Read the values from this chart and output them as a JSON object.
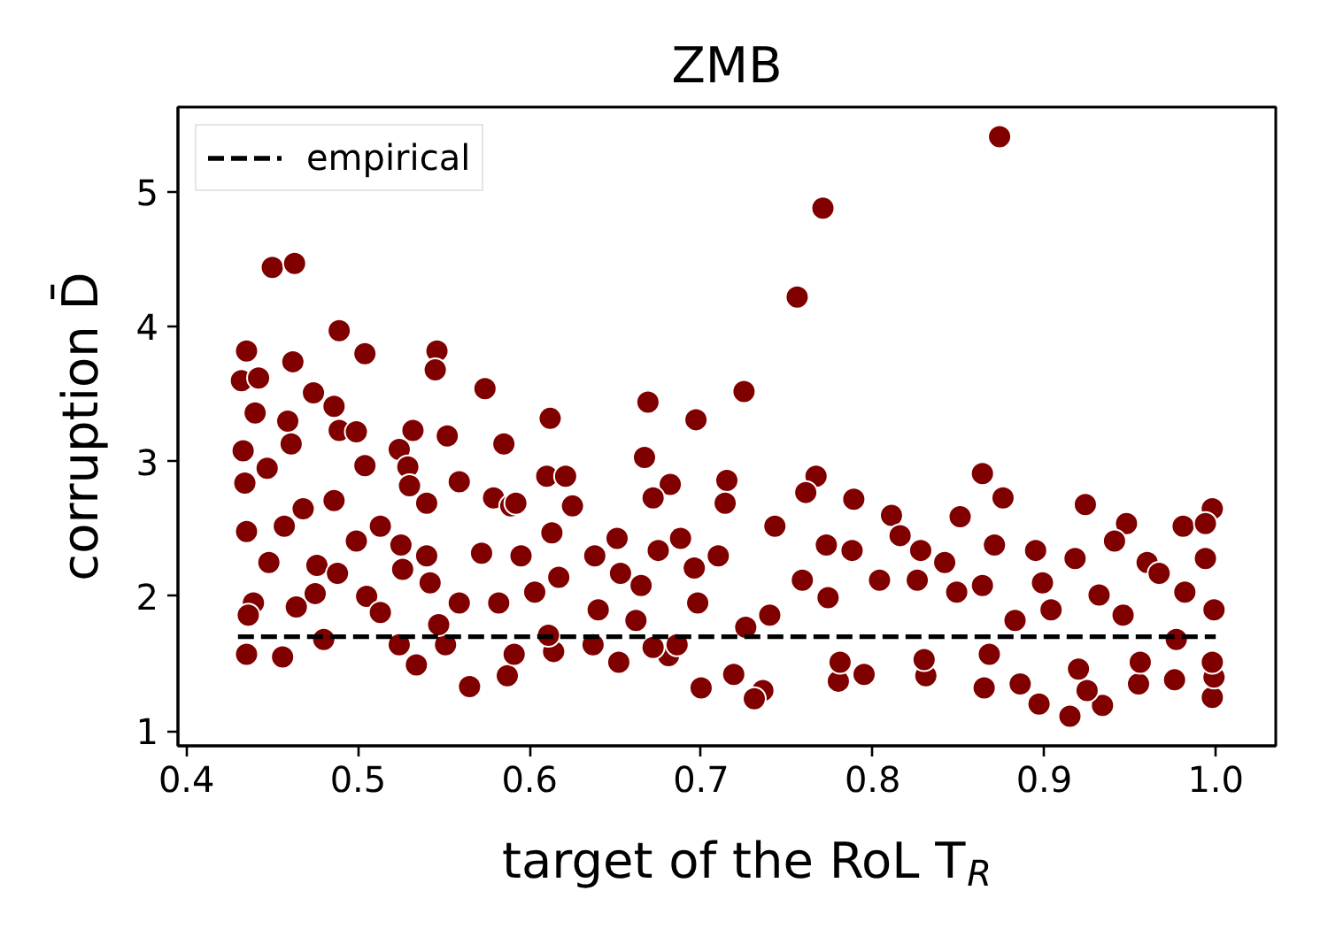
{
  "chart_data": {
    "type": "scatter",
    "title": "ZMB",
    "xlabel": "target of the RoL T$_{R}$",
    "ylabel": "corruption D̄",
    "xlim": [
      0.395,
      1.035
    ],
    "ylim": [
      0.89,
      5.63
    ],
    "xticks": [
      0.4,
      0.5,
      0.6,
      0.7,
      0.8,
      0.9,
      {
        "value": 1.0,
        "label": "1.0"
      }
    ],
    "yticks": [
      1,
      2,
      3,
      4,
      5
    ],
    "legend": "top left",
    "series": [
      {
        "color": "#800000",
        "marker": "circle",
        "x": [
          0.874,
          0.771,
          0.756,
          0.725,
          0.697,
          0.864,
          0.876,
          0.767,
          0.761,
          0.789,
          0.715,
          0.682,
          0.924,
          0.981,
          0.998,
          0.851,
          0.811,
          0.948,
          0.915,
          0.934,
          0.897,
          0.998,
          0.736,
          0.731,
          0.7,
          0.78,
          0.831,
          0.865,
          0.886,
          0.976,
          0.719,
          0.795,
          0.925,
          0.955,
          0.999,
          0.45,
          0.463,
          0.489,
          0.504,
          0.546,
          0.545,
          0.435,
          0.462,
          0.432,
          0.442,
          0.474,
          0.486,
          0.574,
          0.459,
          0.44,
          0.612,
          0.669,
          0.489,
          0.499,
          0.532,
          0.552,
          0.585,
          0.667,
          0.433,
          0.461,
          0.524,
          0.447,
          0.559,
          0.61,
          0.621,
          0.504,
          0.529,
          0.579,
          0.589,
          0.435,
          0.456,
          0.534,
          0.565,
          0.587,
          0.48,
          0.524,
          0.591,
          0.652,
          0.681,
          0.551,
          0.614,
          0.434,
          0.435,
          0.448,
          0.439,
          0.436,
          0.457,
          0.468,
          0.476,
          0.475,
          0.464,
          0.488,
          0.486,
          0.499,
          0.513,
          0.505,
          0.513,
          0.526,
          0.525,
          0.54,
          0.542,
          0.547,
          0.54,
          0.53,
          0.559,
          0.572,
          0.582,
          0.592,
          0.595,
          0.603,
          0.611,
          0.613,
          0.625,
          0.617,
          0.638,
          0.64,
          0.637,
          0.651,
          0.653,
          0.662,
          0.672,
          0.675,
          0.665,
          0.672,
          0.688,
          0.696,
          0.698,
          0.686,
          0.71,
          0.714,
          0.726,
          0.74,
          0.743,
          0.759,
          0.773,
          0.774,
          0.781,
          0.788,
          0.804,
          0.816,
          0.828,
          0.826,
          0.83,
          0.849,
          0.842,
          0.864,
          0.868,
          0.871,
          0.883,
          0.895,
          0.899,
          0.904,
          0.918,
          0.92,
          0.932,
          0.941,
          0.946,
          0.956,
          0.96,
          0.967,
          0.977,
          0.982,
          0.994,
          0.999,
          0.998,
          0.994
        ],
        "values": [
          5.41,
          4.88,
          4.22,
          3.52,
          3.31,
          2.91,
          2.73,
          2.89,
          2.77,
          2.72,
          2.86,
          2.83,
          2.68,
          2.52,
          2.65,
          2.59,
          2.6,
          2.54,
          1.11,
          1.19,
          1.2,
          1.25,
          1.3,
          1.24,
          1.32,
          1.37,
          1.41,
          1.32,
          1.35,
          1.38,
          1.42,
          1.42,
          1.3,
          1.35,
          1.4,
          4.44,
          4.47,
          3.97,
          3.8,
          3.82,
          3.68,
          3.82,
          3.74,
          3.6,
          3.62,
          3.51,
          3.41,
          3.54,
          3.3,
          3.36,
          3.32,
          3.44,
          3.23,
          3.22,
          3.23,
          3.19,
          3.13,
          3.03,
          3.08,
          3.13,
          3.09,
          2.95,
          2.85,
          2.89,
          2.89,
          2.97,
          2.96,
          2.73,
          2.67,
          1.57,
          1.55,
          1.49,
          1.33,
          1.41,
          1.68,
          1.64,
          1.57,
          1.51,
          1.56,
          1.64,
          1.59,
          2.84,
          2.48,
          2.25,
          1.95,
          1.86,
          2.52,
          2.65,
          2.23,
          2.02,
          1.92,
          2.17,
          2.71,
          2.41,
          2.52,
          2.0,
          1.88,
          2.2,
          2.38,
          2.3,
          2.1,
          1.79,
          2.69,
          2.82,
          1.95,
          2.32,
          1.95,
          2.69,
          2.3,
          2.03,
          1.71,
          2.47,
          2.67,
          2.14,
          2.3,
          1.9,
          1.64,
          2.43,
          2.17,
          1.82,
          2.73,
          2.34,
          2.08,
          1.62,
          2.43,
          2.21,
          1.95,
          1.64,
          2.3,
          2.69,
          1.77,
          1.86,
          2.52,
          2.12,
          2.38,
          1.99,
          1.51,
          2.34,
          2.12,
          2.45,
          2.34,
          2.12,
          1.53,
          2.03,
          2.25,
          2.08,
          1.57,
          2.38,
          1.82,
          2.34,
          2.1,
          1.9,
          2.28,
          1.46,
          2.01,
          2.41,
          1.86,
          1.51,
          2.25,
          2.17,
          1.68,
          2.03,
          2.28,
          1.9,
          1.51,
          2.54
        ]
      },
      {
        "type": "line",
        "name": "empirical",
        "color": "#000000",
        "line_style": "dashed",
        "x": [
          0.43,
          1.0
        ],
        "values": [
          1.7,
          1.7
        ]
      }
    ]
  }
}
